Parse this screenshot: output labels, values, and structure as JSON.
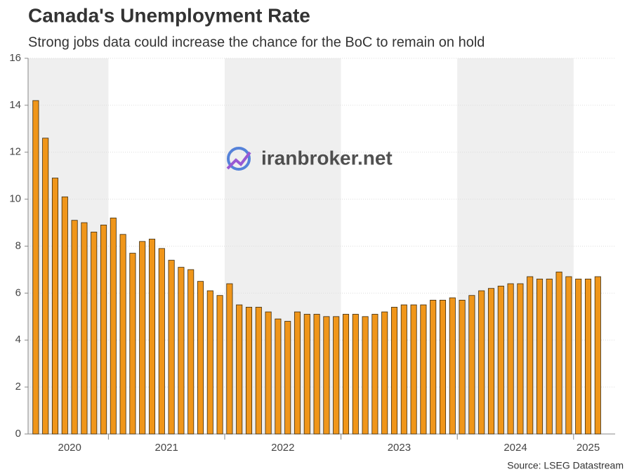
{
  "chart_data": {
    "type": "bar",
    "title": "Canada's Unemployment Rate",
    "subtitle": "Strong jobs data could increase the chance for the BoC to remain on hold",
    "source": "Source: LSEG Datastream",
    "watermark": "iranbroker.net",
    "categories": [
      "2020",
      "2020",
      "2020",
      "2020",
      "2020",
      "2020",
      "2020",
      "2020",
      "2021",
      "2021",
      "2021",
      "2021",
      "2021",
      "2021",
      "2021",
      "2021",
      "2021",
      "2021",
      "2021",
      "2021",
      "2022",
      "2022",
      "2022",
      "2022",
      "2022",
      "2022",
      "2022",
      "2022",
      "2022",
      "2022",
      "2022",
      "2022",
      "2023",
      "2023",
      "2023",
      "2023",
      "2023",
      "2023",
      "2023",
      "2023",
      "2023",
      "2023",
      "2023",
      "2023",
      "2024",
      "2024",
      "2024",
      "2024",
      "2024",
      "2024",
      "2024",
      "2024",
      "2024",
      "2024",
      "2024",
      "2024",
      "2025",
      "2025",
      "2025"
    ],
    "values": [
      14.2,
      12.6,
      10.9,
      10.1,
      9.1,
      9.0,
      8.6,
      8.9,
      9.2,
      8.5,
      7.7,
      8.2,
      8.3,
      7.9,
      7.4,
      7.1,
      7.0,
      6.5,
      6.1,
      5.9,
      6.4,
      5.5,
      5.4,
      5.4,
      5.2,
      4.9,
      4.8,
      5.2,
      5.1,
      5.1,
      5.0,
      5.0,
      5.1,
      5.1,
      5.0,
      5.1,
      5.2,
      5.4,
      5.5,
      5.5,
      5.5,
      5.7,
      5.7,
      5.8,
      5.7,
      5.9,
      6.1,
      6.2,
      6.3,
      6.4,
      6.4,
      6.7,
      6.6,
      6.6,
      6.9,
      6.7,
      6.6,
      6.6,
      6.7
    ],
    "color": "#f0961a",
    "ylim": [
      0,
      16
    ],
    "yticks": [
      0,
      2,
      4,
      6,
      8,
      10,
      12,
      14,
      16
    ],
    "grid": true
  }
}
